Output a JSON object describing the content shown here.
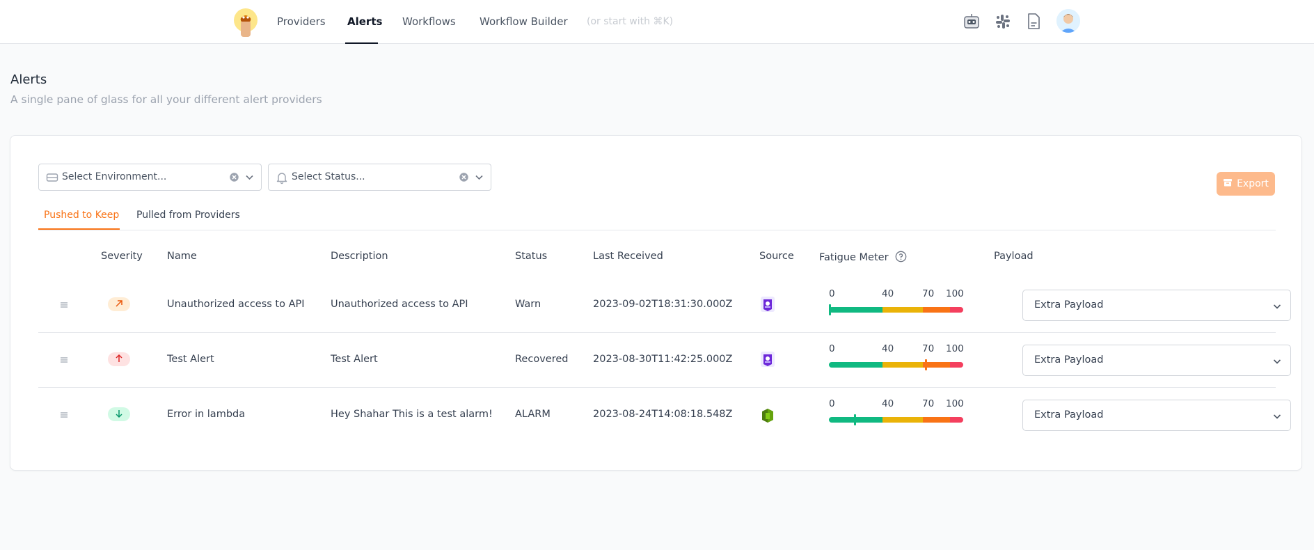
{
  "nav": {
    "items": [
      {
        "label": "Providers"
      },
      {
        "label": "Alerts",
        "active": true
      },
      {
        "label": "Workflows"
      },
      {
        "label": "Workflow Builder"
      }
    ],
    "hint": "(or start with ⌘K)",
    "right_icons": [
      "robot-icon",
      "slack-icon",
      "docs-icon",
      "avatar"
    ]
  },
  "header": {
    "title": "Alerts",
    "subtitle": "A single pane of glass for all your different alert providers"
  },
  "filters": {
    "environment_placeholder": "Select Environment...",
    "status_placeholder": "Select Status..."
  },
  "export_label": "Export",
  "tabs": [
    {
      "label": "Pushed to Keep",
      "active": true
    },
    {
      "label": "Pulled from Providers"
    }
  ],
  "columns": {
    "severity": "Severity",
    "name": "Name",
    "description": "Description",
    "status": "Status",
    "last_received": "Last Received",
    "source": "Source",
    "fatigue": "Fatigue Meter",
    "payload": "Payload"
  },
  "meter_ticks": [
    "0",
    "40",
    "70",
    "100"
  ],
  "colors": {
    "accent": "#f97316",
    "green": "#10b981",
    "yellow": "#eab308",
    "orange": "#f97316",
    "red": "#f43f5e"
  },
  "rows": [
    {
      "severity": "high",
      "severity_icon": "arrow-up-right-icon",
      "name": "Unauthorized access to API",
      "description": "Unauthorized access to API",
      "status": "Warn",
      "last_received": "2023-09-02T18:31:30.000Z",
      "source_icon": "grafana-icon",
      "fatigue": 0,
      "payload": "Extra Payload"
    },
    {
      "severity": "critical",
      "severity_icon": "arrow-up-icon",
      "name": "Test Alert",
      "description": "Test Alert",
      "status": "Recovered",
      "last_received": "2023-08-30T11:42:25.000Z",
      "source_icon": "grafana-icon",
      "fatigue": 72,
      "payload": "Extra Payload"
    },
    {
      "severity": "low",
      "severity_icon": "arrow-down-icon",
      "name": "Error in lambda",
      "description": "Hey Shahar This is a test alarm!",
      "status": "ALARM",
      "last_received": "2023-08-24T14:08:18.548Z",
      "source_icon": "cloudwatch-icon",
      "fatigue": 19,
      "payload": "Extra Payload"
    }
  ]
}
